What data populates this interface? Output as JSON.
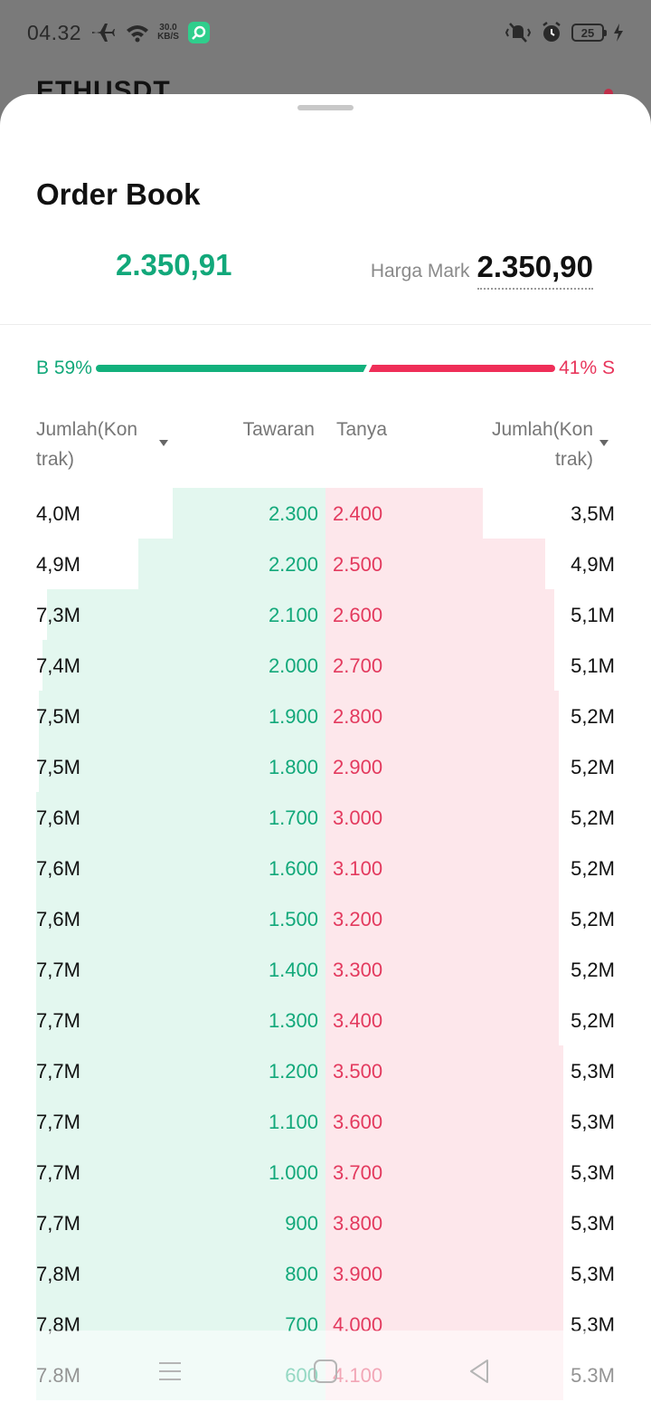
{
  "status_bar": {
    "time": "04.32",
    "net_speed_value": "30.0",
    "net_speed_unit": "KB/S",
    "battery": "25"
  },
  "background_app": {
    "symbol": "ETHUSDT"
  },
  "sheet": {
    "title": "Order Book",
    "last_price": "2.350,91",
    "mark_label": "Harga Mark",
    "mark_price": "2.350,90"
  },
  "ratio": {
    "buy_label": "B 59%",
    "sell_label": "41% S",
    "buy_pct": 59,
    "sell_pct": 41,
    "buy_color": "#12b07c",
    "sell_color": "#ef2e58"
  },
  "columns": {
    "qty_bid": "Jumlah(Kon trak)",
    "bid": "Tawaran",
    "ask": "Tanya",
    "qty_ask": "Jumlah(Kon trak)"
  },
  "rows": [
    {
      "bid_qty": "4,0M",
      "bid": "2.300",
      "ask": "2.400",
      "ask_qty": "3,5M"
    },
    {
      "bid_qty": "4,9M",
      "bid": "2.200",
      "ask": "2.500",
      "ask_qty": "4,9M"
    },
    {
      "bid_qty": "7,3M",
      "bid": "2.100",
      "ask": "2.600",
      "ask_qty": "5,1M"
    },
    {
      "bid_qty": "7,4M",
      "bid": "2.000",
      "ask": "2.700",
      "ask_qty": "5,1M"
    },
    {
      "bid_qty": "7,5M",
      "bid": "1.900",
      "ask": "2.800",
      "ask_qty": "5,2M"
    },
    {
      "bid_qty": "7,5M",
      "bid": "1.800",
      "ask": "2.900",
      "ask_qty": "5,2M"
    },
    {
      "bid_qty": "7,6M",
      "bid": "1.700",
      "ask": "3.000",
      "ask_qty": "5,2M"
    },
    {
      "bid_qty": "7,6M",
      "bid": "1.600",
      "ask": "3.100",
      "ask_qty": "5,2M"
    },
    {
      "bid_qty": "7,6M",
      "bid": "1.500",
      "ask": "3.200",
      "ask_qty": "5,2M"
    },
    {
      "bid_qty": "7,7M",
      "bid": "1.400",
      "ask": "3.300",
      "ask_qty": "5,2M"
    },
    {
      "bid_qty": "7,7M",
      "bid": "1.300",
      "ask": "3.400",
      "ask_qty": "5,2M"
    },
    {
      "bid_qty": "7,7M",
      "bid": "1.200",
      "ask": "3.500",
      "ask_qty": "5,3M"
    },
    {
      "bid_qty": "7,7M",
      "bid": "1.100",
      "ask": "3.600",
      "ask_qty": "5,3M"
    },
    {
      "bid_qty": "7,7M",
      "bid": "1.000",
      "ask": "3.700",
      "ask_qty": "5,3M"
    },
    {
      "bid_qty": "7,7M",
      "bid": "900",
      "ask": "3.800",
      "ask_qty": "5,3M"
    },
    {
      "bid_qty": "7,8M",
      "bid": "800",
      "ask": "3.900",
      "ask_qty": "5,3M"
    },
    {
      "bid_qty": "7,8M",
      "bid": "700",
      "ask": "4.000",
      "ask_qty": "5,3M"
    },
    {
      "bid_qty": "7.8M",
      "bid": "600",
      "ask": "4.100",
      "ask_qty": "5.3M"
    }
  ],
  "nav": {
    "icons": [
      "menu-icon",
      "home-icon",
      "back-icon"
    ]
  }
}
